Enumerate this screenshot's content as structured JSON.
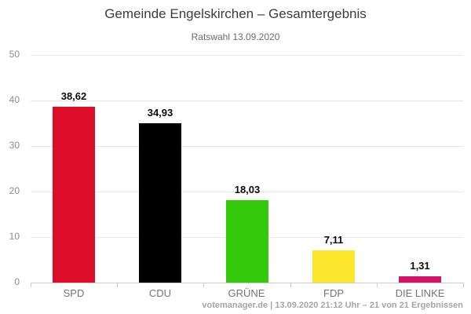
{
  "header": {
    "title": "Gemeinde Engelskirchen – Gesamtergebnis",
    "subtitle": "Ratswahl 13.09.2020"
  },
  "footer": {
    "credit": "votemanager.de | 13.09.2020 21:12 Uhr – 21 von 21 Ergebnissen"
  },
  "chart_data": {
    "type": "bar",
    "title": "Gemeinde Engelskirchen – Gesamtergebnis",
    "subtitle": "Ratswahl 13.09.2020",
    "categories": [
      "SPD",
      "CDU",
      "GRÜNE",
      "FDP",
      "DIE LINKE"
    ],
    "values": [
      38.62,
      34.93,
      18.03,
      7.11,
      1.31
    ],
    "value_labels": [
      "38,62",
      "34,93",
      "18,03",
      "7,11",
      "1,31"
    ],
    "bar_colors": [
      "#db0d29",
      "#000000",
      "#34c80a",
      "#fbe62c",
      "#d31368"
    ],
    "xlabel": "",
    "ylabel": "",
    "ylim": [
      0,
      50
    ],
    "yticks": [
      0,
      10,
      20,
      30,
      40,
      50
    ],
    "grid": true,
    "legend": "none"
  }
}
